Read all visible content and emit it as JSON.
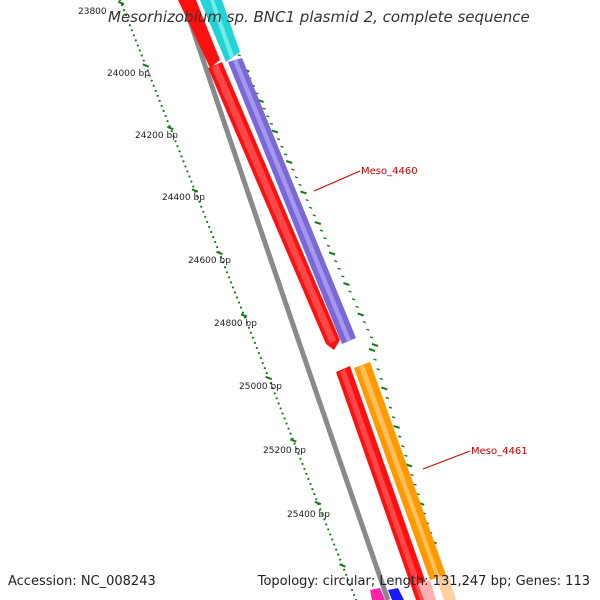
{
  "title": "Mesorhizobium sp. BNC1 plasmid 2, complete sequence",
  "footer": {
    "accession": "Accession: NC_008243",
    "summary": "Topology: circular; Length: 131,247 bp; Genes: 113"
  },
  "ruler": {
    "labels": [
      "23800",
      "24000 bp",
      "24200 bp",
      "24400 bp",
      "24600 bp",
      "24800 bp",
      "25000 bp",
      "25200 bp",
      "25400 bp"
    ]
  },
  "genes": [
    {
      "id": "Meso_4460",
      "label": "Meso_4460",
      "color": "#7b68d8"
    },
    {
      "id": "Meso_4461",
      "label": "Meso_4461",
      "color": "#ff9900"
    }
  ],
  "colors": {
    "cds": "#ff0000",
    "backbone": "#888888",
    "tick": "#1a7a1a",
    "label": "#cc0000",
    "cyan_gene": "#20d0d0"
  }
}
